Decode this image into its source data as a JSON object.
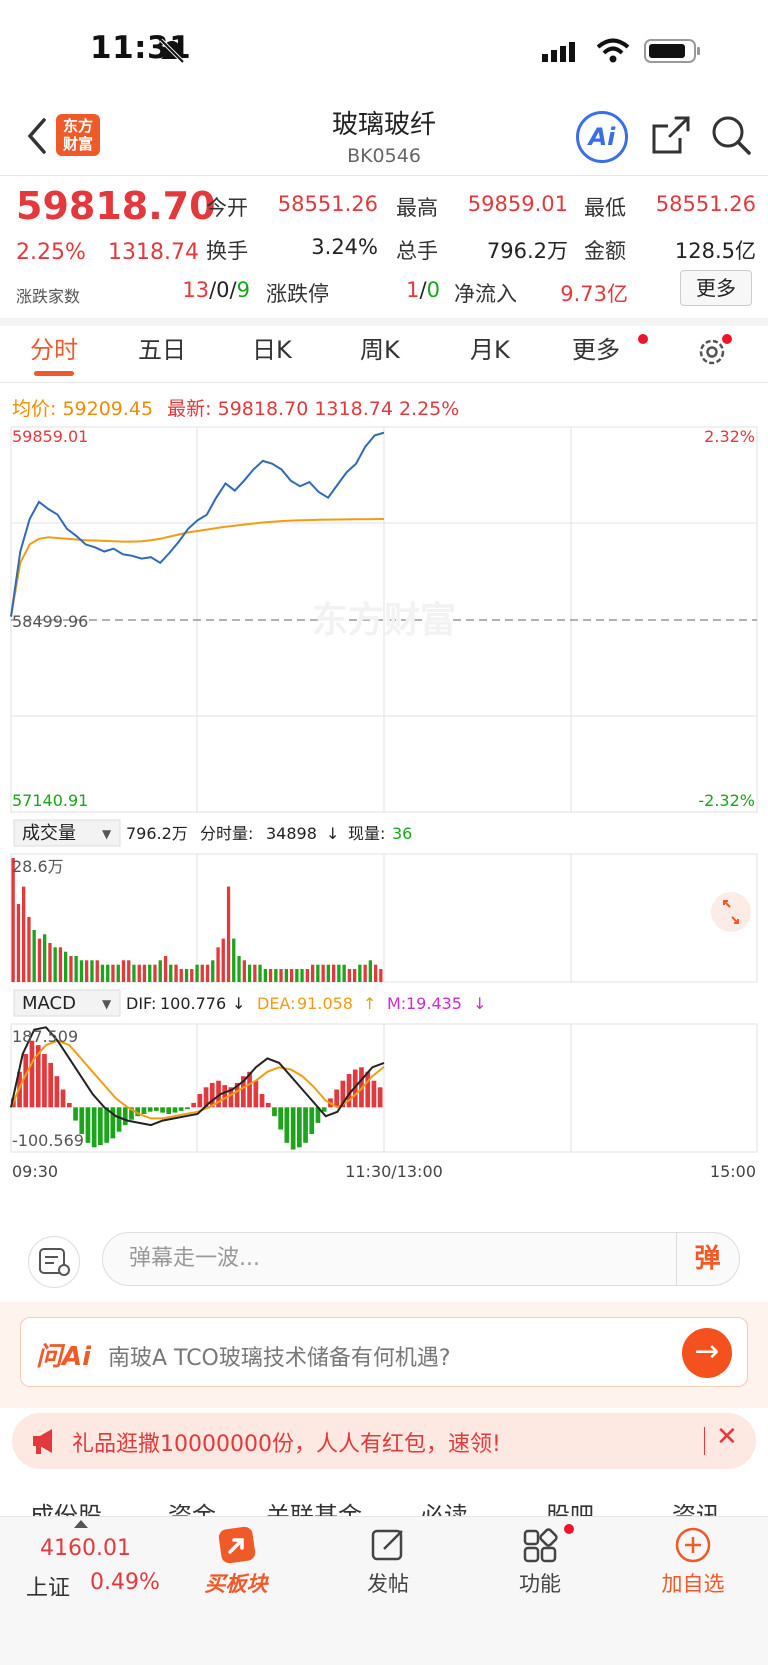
{
  "status_bar": {
    "time": "11:31"
  },
  "header": {
    "logo_text": "东方\n财富",
    "title": "玻璃玻纤",
    "code": "BK0546",
    "ai_label": "Ai"
  },
  "quote": {
    "price": "59818.70",
    "change_pct": "2.25%",
    "change": "1318.74",
    "open_label": "今开",
    "open": "58551.26",
    "high_label": "最高",
    "high": "59859.01",
    "low_label": "最低",
    "low": "58551.26",
    "turnover_label": "换手",
    "turnover": "3.24%",
    "volume_label": "总手",
    "volume": "796.2万",
    "amount_label": "金额",
    "amount": "128.5亿",
    "breadth_label": "涨跌家数",
    "breadth_up": "13",
    "breadth_flat": "0",
    "breadth_down": "9",
    "limit_label": "涨跌停",
    "limit_up": "1",
    "limit_down": "0",
    "netflow_label": "净流入",
    "netflow": "9.73亿",
    "more_label": "更多"
  },
  "tabs": [
    "分时",
    "五日",
    "日K",
    "周K",
    "月K",
    "更多"
  ],
  "summary": {
    "avg_label": "均价:",
    "avg": "59209.45",
    "latest_label": "最新:",
    "latest": "59818.70",
    "latest_change": "1318.74",
    "latest_pct": "2.25%"
  },
  "chart_data": {
    "type": "line",
    "price_axis": {
      "top": "59859.01",
      "mid": "58499.96",
      "bottom": "57140.91",
      "top_pct": "2.32%",
      "bottom_pct": "-2.32%"
    },
    "time_labels": [
      "09:30",
      "11:30/13:00",
      "15:00"
    ],
    "watermark": "东方财富",
    "price_series": [
      58520,
      58980,
      59210,
      59330,
      59280,
      59240,
      59140,
      59090,
      59030,
      59010,
      58980,
      59000,
      58960,
      58950,
      58930,
      58940,
      58900,
      58970,
      59050,
      59140,
      59200,
      59240,
      59360,
      59460,
      59410,
      59480,
      59560,
      59620,
      59600,
      59560,
      59480,
      59440,
      59470,
      59400,
      59360,
      59450,
      59540,
      59600,
      59720,
      59800,
      59818.7
    ],
    "avg_series": [
      58520,
      58900,
      59030,
      59070,
      59080,
      59075,
      59070,
      59065,
      59060,
      59058,
      59055,
      59052,
      59050,
      59050,
      59052,
      59060,
      59070,
      59085,
      59100,
      59115,
      59125,
      59135,
      59145,
      59155,
      59162,
      59170,
      59178,
      59185,
      59190,
      59195,
      59198,
      59200,
      59202,
      59204,
      59205,
      59206,
      59207,
      59208,
      59208,
      59209,
      59209.45
    ],
    "volume": {
      "selector": "成交量",
      "total": "796.2万",
      "minute_label": "分时量:",
      "minute": "34898",
      "current_label": "现量:",
      "current": "36",
      "max_label": "28.6万",
      "bars": [
        28.6,
        18,
        22,
        15,
        12,
        10,
        11,
        9,
        8,
        8,
        7,
        6,
        6,
        5,
        5,
        5,
        5,
        4,
        4,
        4,
        4,
        5,
        5,
        4,
        4,
        4,
        4,
        4,
        5,
        6,
        4,
        4,
        3,
        3,
        3,
        4,
        4,
        4,
        5,
        8,
        10,
        22,
        10,
        6,
        5,
        4,
        4,
        4,
        3,
        3,
        3,
        3,
        3,
        3,
        3,
        3,
        3,
        4,
        4,
        4,
        4,
        4,
        4,
        4,
        3,
        3,
        4,
        4,
        5,
        4,
        3
      ],
      "bar_colors": [
        "r",
        "r",
        "r",
        "r",
        "g",
        "r",
        "g",
        "r",
        "g",
        "r",
        "g",
        "r",
        "g",
        "g",
        "r",
        "g",
        "r",
        "g",
        "g",
        "r",
        "g",
        "r",
        "r",
        "g",
        "r",
        "r",
        "g",
        "r",
        "g",
        "r",
        "g",
        "r",
        "r",
        "g",
        "r",
        "g",
        "r",
        "r",
        "g",
        "r",
        "r",
        "r",
        "g",
        "g",
        "r",
        "g",
        "r",
        "g",
        "g",
        "r",
        "g",
        "r",
        "g",
        "r",
        "g",
        "g",
        "r",
        "r",
        "g",
        "r",
        "g",
        "r",
        "g",
        "g",
        "r",
        "r",
        "g",
        "r",
        "g",
        "r",
        "r"
      ]
    },
    "macd": {
      "selector": "MACD",
      "dif_label": "DIF:",
      "dif": "100.776",
      "dea_label": "DEA:",
      "dea": "91.058",
      "m_label": "M:",
      "m": "19.435",
      "top": "187.509",
      "bottom": "-100.569",
      "hist": [
        20,
        80,
        120,
        150,
        140,
        120,
        100,
        70,
        40,
        10,
        -30,
        -60,
        -80,
        -90,
        -85,
        -80,
        -70,
        -55,
        -40,
        -28,
        -20,
        -15,
        -10,
        -8,
        -12,
        -15,
        -12,
        -8,
        -4,
        10,
        30,
        45,
        55,
        60,
        50,
        45,
        55,
        70,
        80,
        60,
        30,
        10,
        -20,
        -50,
        -80,
        -95,
        -90,
        -80,
        -60,
        -35,
        -10,
        20,
        40,
        60,
        75,
        85,
        90,
        80,
        60,
        45
      ],
      "dif_series": [
        0,
        120,
        175,
        180,
        150,
        110,
        70,
        30,
        0,
        -20,
        -30,
        -35,
        -40,
        -30,
        -25,
        -20,
        -15,
        10,
        30,
        40,
        60,
        90,
        110,
        100,
        70,
        40,
        10,
        -20,
        -10,
        30,
        60,
        90,
        100
      ],
      "dea_series": [
        0,
        60,
        110,
        140,
        150,
        140,
        110,
        80,
        50,
        20,
        0,
        -15,
        -25,
        -25,
        -20,
        -15,
        -10,
        0,
        15,
        30,
        45,
        60,
        80,
        90,
        85,
        70,
        45,
        15,
        0,
        15,
        40,
        70,
        91
      ]
    }
  },
  "comment": {
    "placeholder": "弹幕走一波...",
    "danmu": "弹"
  },
  "ai_bar": {
    "label": "问Ai",
    "question": "南玻A TCO玻璃技术储备有何机遇?"
  },
  "promo": {
    "text": "礼品逛撒10000000份，人人有红包，速领!"
  },
  "subtabs": [
    "成份股",
    "资金",
    "关联基金",
    "必读",
    "股吧",
    "资讯"
  ],
  "bottom_nav": {
    "index_value": "4160.01",
    "index_name": "上证",
    "index_pct": "0.49%",
    "buy_label": "买板块",
    "post_label": "发帖",
    "func_label": "功能",
    "add_label": "加自选"
  }
}
